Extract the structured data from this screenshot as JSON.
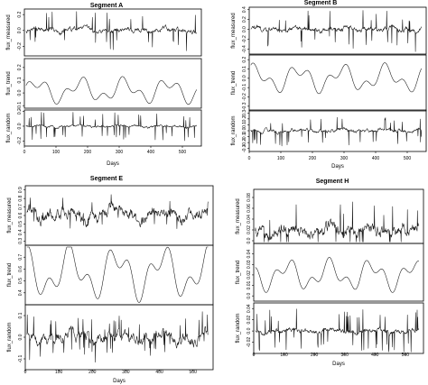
{
  "chart_data": [
    {
      "type": "line",
      "title": "Segment A",
      "xlabel": "Days",
      "xlim": [
        0,
        560
      ],
      "xticks": [
        0,
        100,
        200,
        300,
        400,
        500
      ],
      "panels": [
        {
          "ylabel": "flux_measured",
          "ylim": [
            -0.32,
            0.27
          ],
          "yticks": [
            -0.2,
            0.0,
            0.2
          ],
          "base": 0.0,
          "amp": 0.06,
          "spike": 0.22,
          "freq": 3
        },
        {
          "ylabel": "flux_trend",
          "ylim": [
            -0.12,
            0.27
          ],
          "yticks": [
            -0.1,
            0.0,
            0.1,
            0.2
          ],
          "base": 0.02,
          "amp": 0.08,
          "spike": 0.0,
          "freq": 1
        },
        {
          "ylabel": "flux_random",
          "ylim": [
            -0.27,
            0.22
          ],
          "yticks": [
            -0.2,
            0.0,
            0.2
          ],
          "base": 0.0,
          "amp": 0.03,
          "spike": 0.18,
          "freq": 4
        }
      ]
    },
    {
      "type": "line",
      "title": "Segment B",
      "xlabel": "Days",
      "xlim": [
        0,
        560
      ],
      "xticks": [
        0,
        100,
        200,
        300,
        400,
        500
      ],
      "panels": [
        {
          "ylabel": "flux_measured",
          "ylim": [
            -0.5,
            0.45
          ],
          "yticks": [
            -0.4,
            -0.2,
            0.0,
            0.2,
            0.4
          ],
          "base": 0.0,
          "amp": 0.1,
          "spike": 0.35,
          "freq": 3
        },
        {
          "ylabel": "flux_trend",
          "ylim": [
            -0.35,
            0.25
          ],
          "yticks": [
            -0.3,
            -0.2,
            -0.1,
            0.0,
            0.1,
            0.2
          ],
          "base": 0.0,
          "amp": 0.12,
          "spike": 0.0,
          "freq": 1
        },
        {
          "ylabel": "flux_random",
          "ylim": [
            -0.35,
            0.35
          ],
          "yticks": [
            -0.3,
            -0.2,
            -0.1,
            0.0,
            0.1,
            0.2,
            0.3
          ],
          "base": 0.0,
          "amp": 0.06,
          "spike": 0.22,
          "freq": 4
        }
      ]
    },
    {
      "type": "line",
      "title": "Segment E",
      "xlabel": "Days",
      "xlim": [
        0,
        560
      ],
      "xticks": [
        0,
        100,
        200,
        300,
        400,
        500
      ],
      "panels": [
        {
          "ylabel": "flux_measured",
          "ylim": [
            0.25,
            0.95
          ],
          "yticks": [
            0.3,
            0.4,
            0.5,
            0.6,
            0.7,
            0.8,
            0.9
          ],
          "base": 0.62,
          "amp": 0.14,
          "spike": 0.15,
          "freq": 2
        },
        {
          "ylabel": "flux_trend",
          "ylim": [
            0.3,
            0.8
          ],
          "yticks": [
            0.4,
            0.5,
            0.6,
            0.7
          ],
          "base": 0.57,
          "amp": 0.18,
          "spike": 0.0,
          "freq": 1
        },
        {
          "ylabel": "flux_random",
          "ylim": [
            -0.15,
            0.15
          ],
          "yticks": [
            -0.1,
            0.0,
            0.1
          ],
          "base": 0.0,
          "amp": 0.05,
          "spike": 0.09,
          "freq": 5
        }
      ]
    },
    {
      "type": "line",
      "title": "Segment H",
      "xlabel": "Days",
      "xlim": [
        0,
        560
      ],
      "xticks": [
        0,
        100,
        200,
        300,
        400,
        500
      ],
      "panels": [
        {
          "ylabel": "flux_measured",
          "ylim": [
            -0.005,
            0.095
          ],
          "yticks": [
            0.0,
            0.02,
            0.04,
            0.06,
            0.08
          ],
          "base": 0.02,
          "amp": 0.02,
          "spike": 0.05,
          "freq": 4
        },
        {
          "ylabel": "flux_trend",
          "ylim": [
            -0.005,
            0.05
          ],
          "yticks": [
            0.0,
            0.01,
            0.02,
            0.03,
            0.04
          ],
          "base": 0.02,
          "amp": 0.012,
          "spike": 0.0,
          "freq": 1
        },
        {
          "ylabel": "flux_random",
          "ylim": [
            -0.04,
            0.05
          ],
          "yticks": [
            -0.02,
            0.0,
            0.02,
            0.04
          ],
          "base": 0.0,
          "amp": 0.008,
          "spike": 0.035,
          "freq": 5
        }
      ]
    }
  ]
}
